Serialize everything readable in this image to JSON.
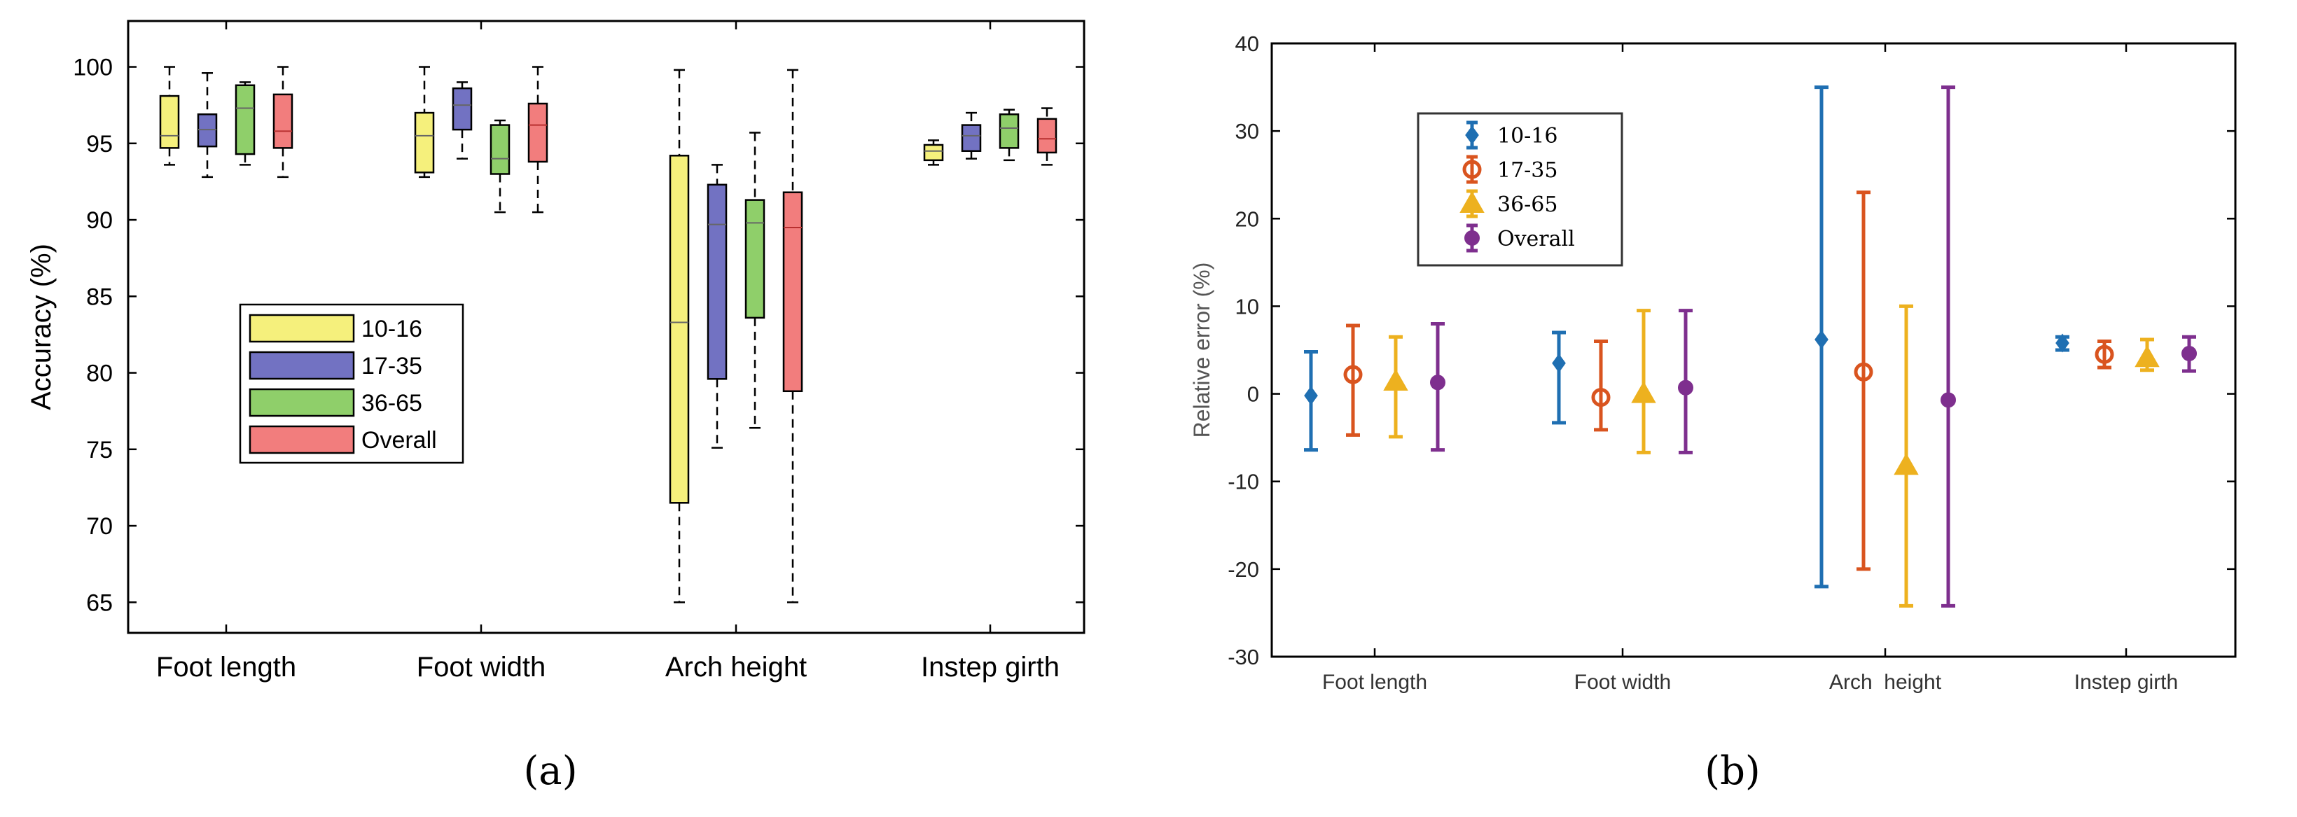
{
  "chart_data": [
    {
      "panel_label": "(a)",
      "type": "box",
      "title": "",
      "xlabel": "",
      "ylabel": "Accuracy (%)",
      "ylim": [
        63,
        103
      ],
      "yticks": [
        65,
        70,
        75,
        80,
        85,
        90,
        95,
        100
      ],
      "grid": false,
      "legend_position": "center-left",
      "categories": [
        "Foot length",
        "Foot width",
        "Arch height",
        "Instep girth"
      ],
      "series": [
        {
          "name": "10-16",
          "color": "#f5f07c",
          "boxes": [
            {
              "whisker_low": 93.6,
              "q1": 94.7,
              "median": 95.5,
              "q3": 98.1,
              "whisker_high": 100.0
            },
            {
              "whisker_low": 92.8,
              "q1": 93.1,
              "median": 95.5,
              "q3": 97.0,
              "whisker_high": 100.0
            },
            {
              "whisker_low": 65.0,
              "q1": 71.5,
              "median": 83.3,
              "q3": 94.2,
              "whisker_high": 99.8
            },
            {
              "whisker_low": 93.6,
              "q1": 93.9,
              "median": 94.5,
              "q3": 94.9,
              "whisker_high": 95.2
            }
          ]
        },
        {
          "name": "17-35",
          "color": "#7272c2",
          "boxes": [
            {
              "whisker_low": 92.8,
              "q1": 94.8,
              "median": 95.9,
              "q3": 96.9,
              "whisker_high": 99.6
            },
            {
              "whisker_low": 94.0,
              "q1": 95.9,
              "median": 97.5,
              "q3": 98.6,
              "whisker_high": 99.0
            },
            {
              "whisker_low": 75.1,
              "q1": 79.6,
              "median": 89.7,
              "q3": 92.3,
              "whisker_high": 93.6
            },
            {
              "whisker_low": 94.0,
              "q1": 94.5,
              "median": 95.5,
              "q3": 96.2,
              "whisker_high": 97.0
            }
          ]
        },
        {
          "name": "36-65",
          "color": "#8fcf6a",
          "boxes": [
            {
              "whisker_low": 93.6,
              "q1": 94.3,
              "median": 97.3,
              "q3": 98.8,
              "whisker_high": 99.0
            },
            {
              "whisker_low": 90.5,
              "q1": 93.0,
              "median": 94.0,
              "q3": 96.2,
              "whisker_high": 96.5
            },
            {
              "whisker_low": 76.4,
              "q1": 83.6,
              "median": 89.8,
              "q3": 91.3,
              "whisker_high": 95.7
            },
            {
              "whisker_low": 93.9,
              "q1": 94.7,
              "median": 96.0,
              "q3": 96.9,
              "whisker_high": 97.2
            }
          ]
        },
        {
          "name": "Overall",
          "color": "#f27d7d",
          "boxes": [
            {
              "whisker_low": 92.8,
              "q1": 94.7,
              "median": 95.8,
              "q3": 98.2,
              "whisker_high": 100.0
            },
            {
              "whisker_low": 90.5,
              "q1": 93.8,
              "median": 96.2,
              "q3": 97.6,
              "whisker_high": 100.0
            },
            {
              "whisker_low": 65.0,
              "q1": 78.8,
              "median": 89.5,
              "q3": 91.8,
              "whisker_high": 99.8
            },
            {
              "whisker_low": 93.6,
              "q1": 94.4,
              "median": 95.3,
              "q3": 96.6,
              "whisker_high": 97.3
            }
          ]
        }
      ]
    },
    {
      "panel_label": "(b)",
      "type": "errorbar",
      "title": "",
      "xlabel": "",
      "ylabel": "Relative error (%)",
      "ylim": [
        -30,
        40
      ],
      "yticks": [
        -30,
        -20,
        -10,
        0,
        10,
        20,
        30,
        40
      ],
      "grid": false,
      "legend_position": "top-left",
      "categories": [
        "Foot length",
        "Foot width",
        "Arch  height",
        "Instep girth"
      ],
      "series": [
        {
          "name": "10-16",
          "color": "#1f6fb2",
          "marker": "diamond",
          "points": [
            {
              "mean": -0.2,
              "low": -6.4,
              "high": 4.8
            },
            {
              "mean": 3.5,
              "low": -3.3,
              "high": 7.0
            },
            {
              "mean": 6.2,
              "low": -22.0,
              "high": 35.0
            },
            {
              "mean": 5.8,
              "low": 5.0,
              "high": 6.5
            }
          ]
        },
        {
          "name": "17-35",
          "color": "#d9541f",
          "marker": "circle",
          "points": [
            {
              "mean": 2.2,
              "low": -4.7,
              "high": 7.8
            },
            {
              "mean": -0.4,
              "low": -4.1,
              "high": 6.0
            },
            {
              "mean": 2.5,
              "low": -20.0,
              "high": 23.0
            },
            {
              "mean": 4.5,
              "low": 3.0,
              "high": 6.0
            }
          ]
        },
        {
          "name": "36-65",
          "color": "#edb11f",
          "marker": "triangle",
          "points": [
            {
              "mean": 1.4,
              "low": -4.9,
              "high": 6.5
            },
            {
              "mean": 0.0,
              "low": -6.7,
              "high": 9.5
            },
            {
              "mean": -8.2,
              "low": -24.2,
              "high": 10.0
            },
            {
              "mean": 4.1,
              "low": 2.7,
              "high": 6.2
            }
          ]
        },
        {
          "name": "Overall",
          "color": "#7e2f8e",
          "marker": "dot",
          "points": [
            {
              "mean": 1.3,
              "low": -6.4,
              "high": 8.0
            },
            {
              "mean": 0.7,
              "low": -6.7,
              "high": 9.5
            },
            {
              "mean": -0.7,
              "low": -24.2,
              "high": 35.0
            },
            {
              "mean": 4.6,
              "low": 2.6,
              "high": 6.5
            }
          ]
        }
      ]
    }
  ]
}
